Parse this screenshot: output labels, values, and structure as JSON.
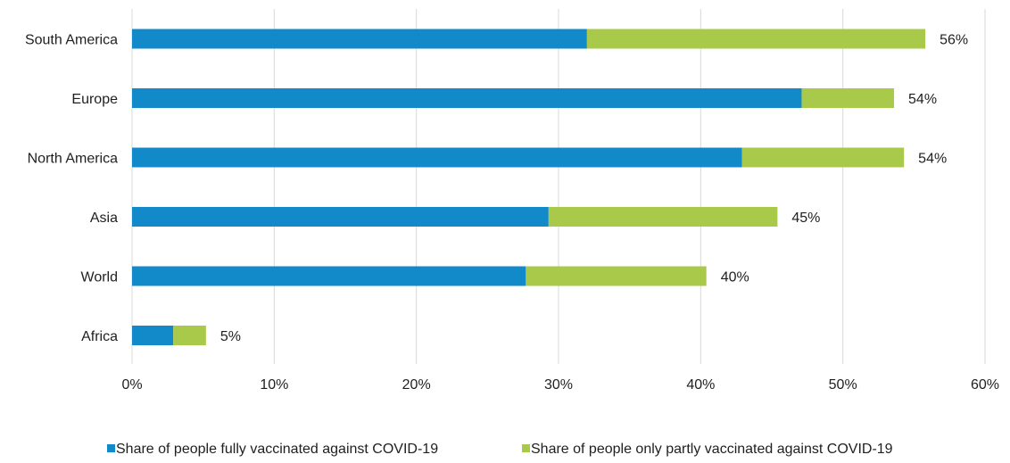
{
  "chart_data": {
    "type": "bar",
    "orientation": "horizontal",
    "stacked": true,
    "categories": [
      "South America",
      "Europe",
      "North America",
      "Asia",
      "World",
      "Africa"
    ],
    "series": [
      {
        "name": "Share of people fully vaccinated against COVID-19",
        "color": "#1289c9",
        "values": [
          32.0,
          47.1,
          42.9,
          29.3,
          27.7,
          2.9
        ]
      },
      {
        "name": "Share of people only partly vaccinated against COVID-19",
        "color": "#a9c94a",
        "values": [
          23.8,
          6.5,
          11.4,
          16.1,
          12.7,
          2.3
        ]
      }
    ],
    "total_labels": [
      "56%",
      "54%",
      "54%",
      "45%",
      "40%",
      "5%"
    ],
    "x_ticks": [
      0,
      10,
      20,
      30,
      40,
      50,
      60
    ],
    "x_tick_labels": [
      "0%",
      "10%",
      "20%",
      "30%",
      "40%",
      "50%",
      "60%"
    ],
    "xlim": [
      0,
      60
    ],
    "grid": "vertical",
    "legend_position": "bottom"
  }
}
